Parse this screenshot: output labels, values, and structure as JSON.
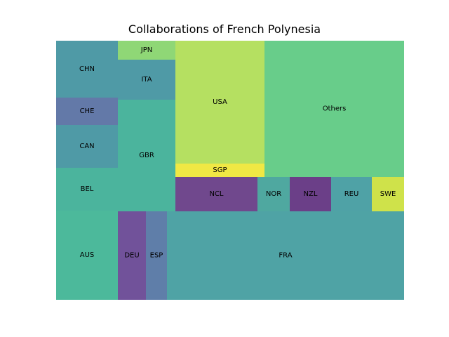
{
  "chart_data": {
    "type": "treemap",
    "title": "Collaborations of French Polynesia",
    "cells": [
      {
        "label": "CHN",
        "color": "#4f9aa6"
      },
      {
        "label": "JPN",
        "color": "#8fd776"
      },
      {
        "label": "ITA",
        "color": "#4f9aa6"
      },
      {
        "label": "CHE",
        "color": "#6379a8"
      },
      {
        "label": "CAN",
        "color": "#4f9aa6"
      },
      {
        "label": "GBR",
        "color": "#4bb49d"
      },
      {
        "label": "BEL",
        "color": "#4bb49d"
      },
      {
        "label": "AUS",
        "color": "#4cb99b"
      },
      {
        "label": "DEU",
        "color": "#71529a"
      },
      {
        "label": "ESP",
        "color": "#5f7ea9"
      },
      {
        "label": "USA",
        "color": "#b5e061"
      },
      {
        "label": "SGP",
        "color": "#f0e844"
      },
      {
        "label": "Others",
        "color": "#68cd8a"
      },
      {
        "label": "NCL",
        "color": "#70488d"
      },
      {
        "label": "NOR",
        "color": "#4fa8a0"
      },
      {
        "label": "NZL",
        "color": "#6b3f88"
      },
      {
        "label": "REU",
        "color": "#4fa2a6"
      },
      {
        "label": "SWE",
        "color": "#cfe24a"
      },
      {
        "label": "FRA",
        "color": "#4fa3a5"
      }
    ]
  }
}
